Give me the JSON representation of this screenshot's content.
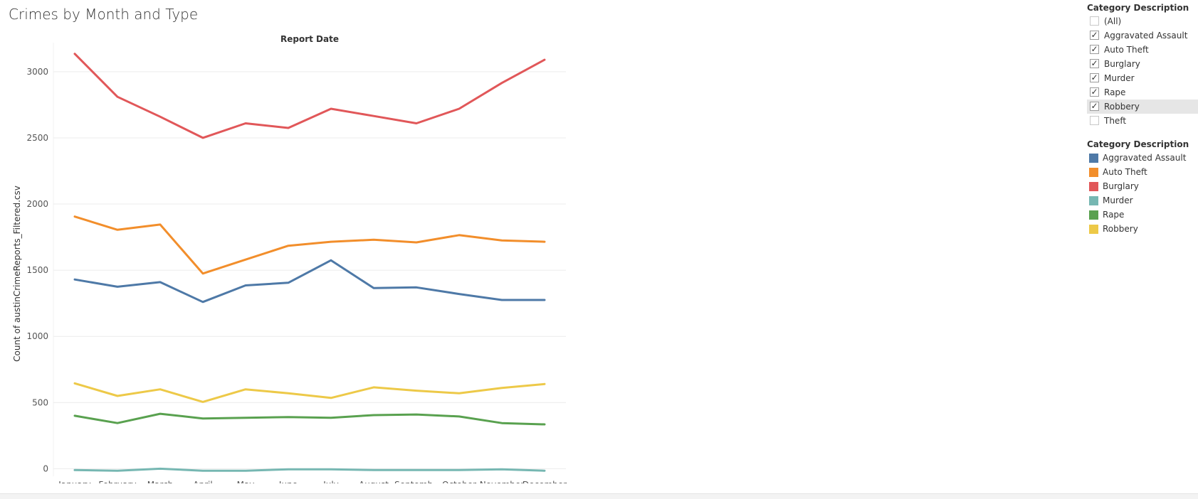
{
  "title": "Crimes by Month and Type",
  "filter": {
    "title": "Category Description",
    "items": [
      {
        "label": "(All)",
        "checked": false
      },
      {
        "label": "Aggravated Assault",
        "checked": true
      },
      {
        "label": "Auto Theft",
        "checked": true
      },
      {
        "label": "Burglary",
        "checked": true
      },
      {
        "label": "Murder",
        "checked": true
      },
      {
        "label": "Rape",
        "checked": true
      },
      {
        "label": "Robbery",
        "checked": true,
        "highlighted": true
      },
      {
        "label": "Theft",
        "checked": false
      }
    ]
  },
  "legend": {
    "title": "Category Description",
    "items": [
      {
        "label": "Aggravated Assault",
        "color": "#4e79a7"
      },
      {
        "label": "Auto Theft",
        "color": "#f28e2b"
      },
      {
        "label": "Burglary",
        "color": "#e15759"
      },
      {
        "label": "Murder",
        "color": "#76b7b2"
      },
      {
        "label": "Rape",
        "color": "#59a14f"
      },
      {
        "label": "Robbery",
        "color": "#edc948"
      }
    ]
  },
  "chart_data": {
    "type": "line",
    "title": "Crimes by Month and Type",
    "column_header": "Report Date",
    "xlabel": "",
    "ylabel": "Count of austinCrimeReports_Filtered.csv",
    "categories": [
      "January",
      "February",
      "March",
      "April",
      "May",
      "June",
      "July",
      "August",
      "Septemb..",
      "October",
      "November",
      "December"
    ],
    "yticks": [
      0,
      500,
      1000,
      1500,
      2000,
      2500,
      3000
    ],
    "ylim": [
      -30,
      3300
    ],
    "grid": true,
    "legend_position": "right",
    "series": [
      {
        "name": "Burglary",
        "color": "#e15759",
        "values": [
          3135,
          2810,
          2660,
          2500,
          2610,
          2575,
          2720,
          2665,
          2610,
          2720,
          2915,
          3090
        ]
      },
      {
        "name": "Auto Theft",
        "color": "#f28e2b",
        "values": [
          1905,
          1805,
          1845,
          1475,
          1580,
          1685,
          1715,
          1730,
          1710,
          1765,
          1725,
          1715
        ]
      },
      {
        "name": "Aggravated Assault",
        "color": "#4e79a7",
        "values": [
          1430,
          1375,
          1410,
          1260,
          1385,
          1405,
          1575,
          1365,
          1370,
          1320,
          1275,
          1275
        ]
      },
      {
        "name": "Robbery",
        "color": "#edc948",
        "values": [
          645,
          550,
          600,
          505,
          600,
          570,
          535,
          615,
          590,
          570,
          610,
          640
        ]
      },
      {
        "name": "Rape",
        "color": "#59a14f",
        "values": [
          400,
          345,
          415,
          380,
          385,
          390,
          385,
          405,
          410,
          395,
          345,
          335
        ]
      },
      {
        "name": "Murder",
        "color": "#76b7b2",
        "values": [
          -10,
          -15,
          0,
          -15,
          -15,
          -5,
          -5,
          -10,
          -10,
          -10,
          -5,
          -15
        ]
      }
    ]
  }
}
